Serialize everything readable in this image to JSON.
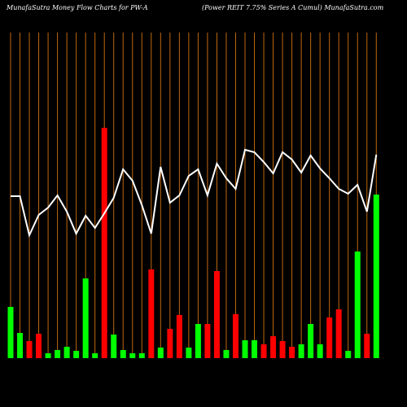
{
  "chart_data": {
    "type": "bar",
    "title": "MunafaSutra  Money Flow  Charts for PW-A",
    "subtitle": "(Power REIT 7.75% Series A Cumul) MunafaSutra.com",
    "ylim": [
      0,
      400
    ],
    "grid": true,
    "grid_color": "#c0680f",
    "line_color": "#ffffff",
    "values": [
      63,
      31,
      21,
      30,
      6,
      10,
      14,
      9,
      98,
      6,
      283,
      29,
      10,
      6,
      6,
      109,
      13,
      36,
      53,
      13,
      42,
      42,
      107,
      10,
      54,
      22,
      22,
      17,
      27,
      21,
      14,
      17,
      42,
      17,
      50,
      60,
      9,
      131,
      30,
      201
    ],
    "colors": [
      "#00ff00",
      "#00ff00",
      "#ff0000",
      "#ff0000",
      "#00ff00",
      "#00ff00",
      "#00ff00",
      "#00ff00",
      "#00ff00",
      "#00ff00",
      "#ff0000",
      "#00ff00",
      "#00ff00",
      "#00ff00",
      "#00ff00",
      "#ff0000",
      "#00ff00",
      "#ff0000",
      "#ff0000",
      "#00ff00",
      "#00ff00",
      "#ff0000",
      "#ff0000",
      "#00ff00",
      "#ff0000",
      "#00ff00",
      "#00ff00",
      "#ff0000",
      "#ff0000",
      "#ff0000",
      "#ff0000",
      "#00ff00",
      "#00ff00",
      "#00ff00",
      "#ff0000",
      "#ff0000",
      "#00ff00",
      "#00ff00",
      "#ff0000",
      "#00ff00"
    ],
    "line": [
      199,
      199,
      151,
      176,
      185,
      200,
      180,
      153,
      175,
      160,
      178,
      197,
      232,
      218,
      188,
      153,
      235,
      191,
      200,
      224,
      232,
      200,
      239,
      221,
      208,
      256,
      253,
      241,
      227,
      253,
      244,
      228,
      249,
      233,
      221,
      208,
      202,
      213,
      180,
      250
    ]
  }
}
